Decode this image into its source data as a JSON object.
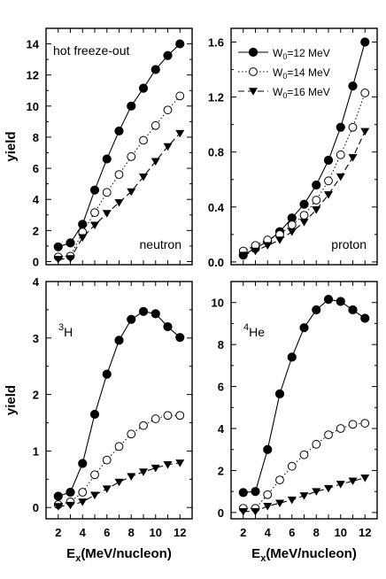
{
  "chart_data": [
    {
      "type": "line",
      "annotation_top": "hot freeze-out",
      "annotation_bottom": "neutron",
      "ylabel": "yield",
      "xlim": [
        1,
        13
      ],
      "ylim": [
        -0.2,
        15
      ],
      "x": [
        2,
        3,
        4,
        5,
        6,
        7,
        8,
        9,
        10,
        11,
        12
      ],
      "yticks": [
        0,
        2,
        4,
        6,
        8,
        10,
        12,
        14
      ],
      "series": [
        {
          "values": [
            0.95,
            1.2,
            2.4,
            4.6,
            6.6,
            8.4,
            10.0,
            11.15,
            12.35,
            13.25,
            14.0
          ]
        },
        {
          "values": [
            0.3,
            0.35,
            1.9,
            3.15,
            4.45,
            5.6,
            6.75,
            7.8,
            8.75,
            9.75,
            10.65
          ]
        },
        {
          "values": [
            0.15,
            0.2,
            1.55,
            2.35,
            3.1,
            3.8,
            4.5,
            5.45,
            6.45,
            7.4,
            8.25
          ]
        }
      ]
    },
    {
      "type": "line",
      "annotation_bottom": "proton",
      "xlim": [
        1,
        13
      ],
      "ylim": [
        -0.02,
        1.7
      ],
      "x": [
        2,
        3,
        4,
        5,
        6,
        7,
        8,
        9,
        10,
        11,
        12
      ],
      "yticks": [
        0.0,
        0.4,
        0.8,
        1.2,
        1.6
      ],
      "ytick_labels": [
        "0.0",
        "0.4",
        "0.8",
        "1.2",
        "1.6"
      ],
      "legend": [
        {
          "prefix": "W",
          "sub": "0",
          "suffix": "=12 MeV"
        },
        {
          "prefix": "W",
          "sub": "0",
          "suffix": "=14 MeV"
        },
        {
          "prefix": "W",
          "sub": "0",
          "suffix": "=16 MeV"
        }
      ],
      "legend_position": "top-right",
      "series": [
        {
          "values": [
            0.05,
            0.1,
            0.15,
            0.22,
            0.32,
            0.42,
            0.56,
            0.74,
            0.98,
            1.28,
            1.6
          ]
        },
        {
          "values": [
            0.08,
            0.12,
            0.16,
            0.2,
            0.27,
            0.34,
            0.45,
            0.59,
            0.78,
            0.98,
            1.23
          ]
        },
        {
          "values": [
            0.05,
            0.08,
            0.12,
            0.16,
            0.22,
            0.29,
            0.38,
            0.49,
            0.62,
            0.76,
            0.95
          ]
        }
      ]
    },
    {
      "type": "line",
      "annotation_top": {
        "sup": "3",
        "base": "H"
      },
      "ylabel": "yield",
      "xlabel": {
        "base": "E",
        "sub": "x",
        "rest": "(MeV/nucleon)"
      },
      "xlim": [
        1,
        13
      ],
      "ylim": [
        -0.2,
        4
      ],
      "x": [
        2,
        3,
        4,
        5,
        6,
        7,
        8,
        9,
        10,
        11,
        12
      ],
      "xticks": [
        2,
        4,
        6,
        8,
        10,
        12
      ],
      "yticks": [
        0,
        1,
        2,
        3,
        4
      ],
      "series": [
        {
          "values": [
            0.2,
            0.27,
            0.78,
            1.65,
            2.36,
            2.96,
            3.33,
            3.47,
            3.43,
            3.2,
            3.01
          ]
        },
        {
          "values": [
            0.05,
            0.1,
            0.27,
            0.58,
            0.84,
            1.08,
            1.3,
            1.45,
            1.57,
            1.63,
            1.63
          ]
        },
        {
          "values": [
            0.02,
            0.04,
            0.1,
            0.22,
            0.33,
            0.45,
            0.55,
            0.63,
            0.7,
            0.76,
            0.79
          ]
        }
      ]
    },
    {
      "type": "line",
      "annotation_top": {
        "sup": "4",
        "base": "He"
      },
      "xlabel": {
        "base": "E",
        "sub": "x",
        "rest": "(MeV/nucleon)"
      },
      "xlim": [
        1,
        13
      ],
      "ylim": [
        -0.3,
        11
      ],
      "x": [
        2,
        3,
        4,
        5,
        6,
        7,
        8,
        9,
        10,
        11,
        12
      ],
      "xticks": [
        2,
        4,
        6,
        8,
        10,
        12
      ],
      "yticks": [
        0,
        2,
        4,
        6,
        8,
        10
      ],
      "series": [
        {
          "values": [
            0.95,
            1.0,
            3.0,
            5.65,
            7.4,
            8.8,
            9.65,
            10.15,
            10.05,
            9.65,
            9.25
          ]
        },
        {
          "values": [
            0.2,
            0.2,
            0.85,
            1.55,
            2.2,
            2.75,
            3.25,
            3.7,
            4.0,
            4.2,
            4.25
          ]
        },
        {
          "values": [
            0.05,
            0.05,
            0.3,
            0.45,
            0.6,
            0.8,
            1.0,
            1.15,
            1.35,
            1.5,
            1.65
          ]
        }
      ]
    }
  ]
}
